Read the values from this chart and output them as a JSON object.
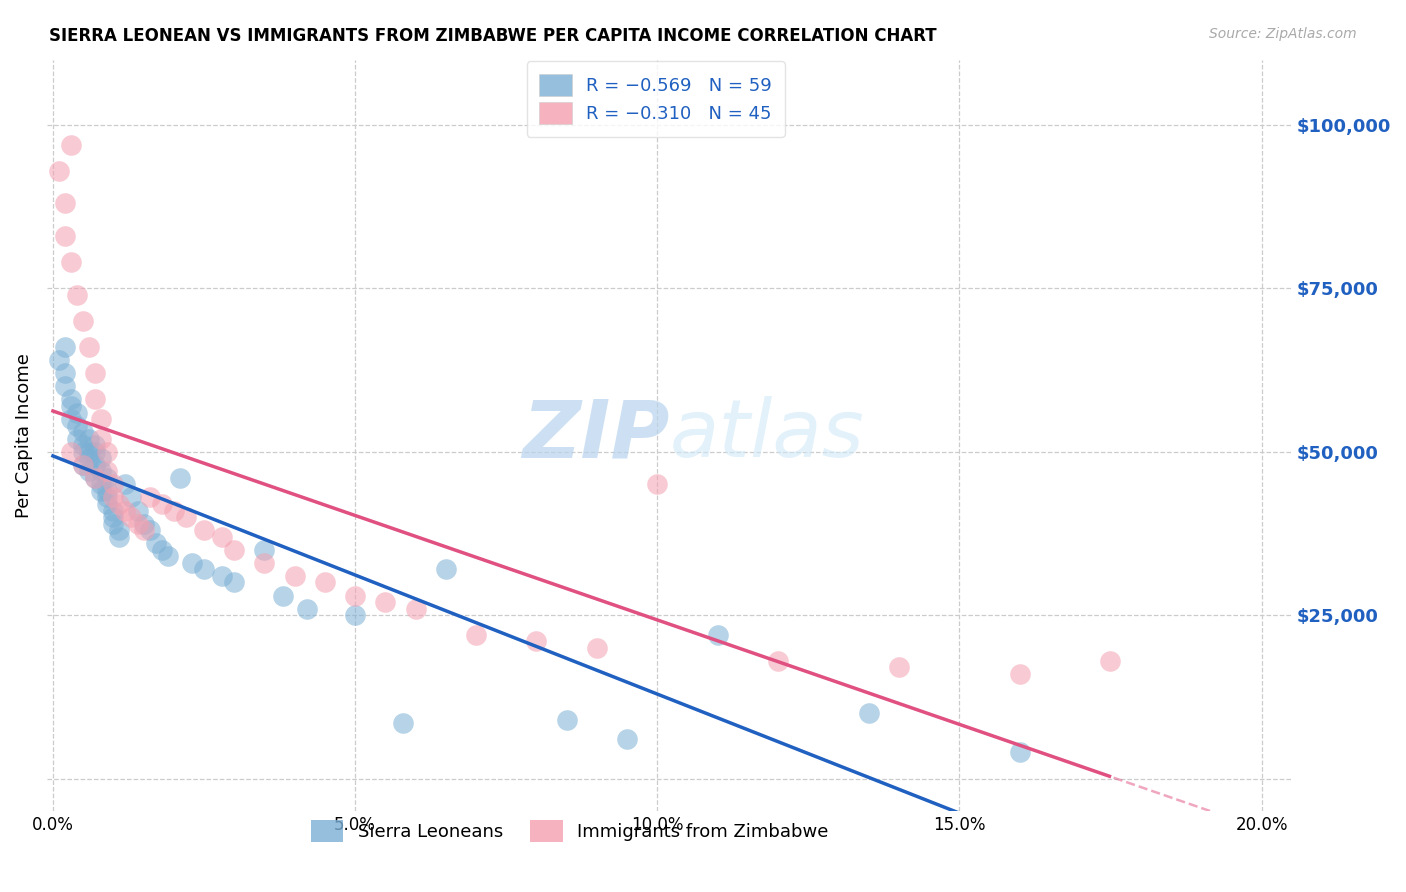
{
  "title": "SIERRA LEONEAN VS IMMIGRANTS FROM ZIMBABWE PER CAPITA INCOME CORRELATION CHART",
  "source": "Source: ZipAtlas.com",
  "ylabel": "Per Capita Income",
  "legend_labels": [
    "Sierra Leoneans",
    "Immigrants from Zimbabwe"
  ],
  "blue_color": "#7bafd4",
  "pink_color": "#f4a0b0",
  "blue_line_color": "#2060c0",
  "pink_line_color": "#e05080",
  "r_value_color": "#2060c0",
  "axis_label_color": "#2060c0",
  "grid_color": "#cccccc",
  "background_color": "#ffffff",
  "watermark_zip": "ZIP",
  "watermark_atlas": "atlas",
  "xlim": [
    -0.001,
    0.205
  ],
  "ylim": [
    -5000,
    110000
  ],
  "yticks": [
    0,
    25000,
    50000,
    75000,
    100000
  ],
  "ytick_labels": [
    "",
    "$25,000",
    "$50,000",
    "$75,000",
    "$100,000"
  ],
  "xticks": [
    0.0,
    0.05,
    0.1,
    0.15,
    0.2
  ],
  "xtick_labels": [
    "0.0%",
    "5.0%",
    "10.0%",
    "15.0%",
    "20.0%"
  ],
  "sierra_x": [
    0.001,
    0.002,
    0.002,
    0.002,
    0.003,
    0.003,
    0.003,
    0.004,
    0.004,
    0.004,
    0.005,
    0.005,
    0.005,
    0.005,
    0.006,
    0.006,
    0.006,
    0.006,
    0.007,
    0.007,
    0.007,
    0.007,
    0.008,
    0.008,
    0.008,
    0.008,
    0.009,
    0.009,
    0.009,
    0.009,
    0.01,
    0.01,
    0.01,
    0.011,
    0.011,
    0.012,
    0.013,
    0.014,
    0.015,
    0.016,
    0.017,
    0.018,
    0.019,
    0.021,
    0.023,
    0.025,
    0.028,
    0.03,
    0.035,
    0.038,
    0.042,
    0.05,
    0.058,
    0.065,
    0.085,
    0.095,
    0.11,
    0.135,
    0.16
  ],
  "sierra_y": [
    64000,
    62000,
    60000,
    66000,
    58000,
    55000,
    57000,
    52000,
    54000,
    56000,
    50000,
    51000,
    53000,
    48000,
    49000,
    50000,
    52000,
    47000,
    48000,
    50000,
    51000,
    46000,
    47000,
    49000,
    45000,
    44000,
    46000,
    43000,
    44000,
    42000,
    41000,
    40000,
    39000,
    38000,
    37000,
    45000,
    43000,
    41000,
    39000,
    38000,
    36000,
    35000,
    34000,
    46000,
    33000,
    32000,
    31000,
    30000,
    35000,
    28000,
    26000,
    25000,
    8500,
    32000,
    9000,
    6000,
    22000,
    10000,
    4000
  ],
  "zimbabwe_x": [
    0.001,
    0.002,
    0.002,
    0.003,
    0.003,
    0.004,
    0.005,
    0.006,
    0.007,
    0.007,
    0.008,
    0.008,
    0.009,
    0.009,
    0.01,
    0.01,
    0.011,
    0.012,
    0.013,
    0.014,
    0.015,
    0.016,
    0.018,
    0.02,
    0.022,
    0.025,
    0.028,
    0.03,
    0.035,
    0.04,
    0.045,
    0.05,
    0.055,
    0.06,
    0.07,
    0.08,
    0.09,
    0.1,
    0.12,
    0.14,
    0.003,
    0.005,
    0.007,
    0.16,
    0.175
  ],
  "zimbabwe_y": [
    93000,
    88000,
    83000,
    97000,
    79000,
    74000,
    70000,
    66000,
    62000,
    58000,
    55000,
    52000,
    50000,
    47000,
    45000,
    43000,
    42000,
    41000,
    40000,
    39000,
    38000,
    43000,
    42000,
    41000,
    40000,
    38000,
    37000,
    35000,
    33000,
    31000,
    30000,
    28000,
    27000,
    26000,
    22000,
    21000,
    20000,
    45000,
    18000,
    17000,
    50000,
    48000,
    46000,
    16000,
    18000
  ]
}
